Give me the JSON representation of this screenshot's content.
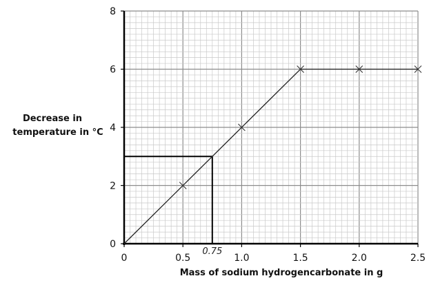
{
  "chart_data": {
    "type": "line",
    "xlabel": "Mass of sodium hydrogencarbonate in g",
    "ylabel_lines": [
      "Decrease in",
      "temperature in °C"
    ],
    "xlim": [
      0,
      2.5
    ],
    "ylim": [
      0,
      8
    ],
    "x_ticks": [
      "0",
      "0.5",
      "1.0",
      "1.5",
      "2.0",
      "2.5"
    ],
    "y_ticks": [
      "0",
      "2",
      "4",
      "6",
      "8"
    ],
    "grid": true,
    "series": [
      {
        "points": [
          {
            "x": 0,
            "y": 0
          },
          {
            "x": 1.5,
            "y": 6
          },
          {
            "x": 2.5,
            "y": 6
          }
        ],
        "markers": [
          {
            "x": 0.5,
            "y": 2
          },
          {
            "x": 1.0,
            "y": 4
          },
          {
            "x": 1.5,
            "y": 6
          },
          {
            "x": 2.0,
            "y": 6
          },
          {
            "x": 2.5,
            "y": 6
          }
        ]
      }
    ],
    "annotation": {
      "text": "0.75",
      "x": 0.75,
      "y": 3
    }
  }
}
